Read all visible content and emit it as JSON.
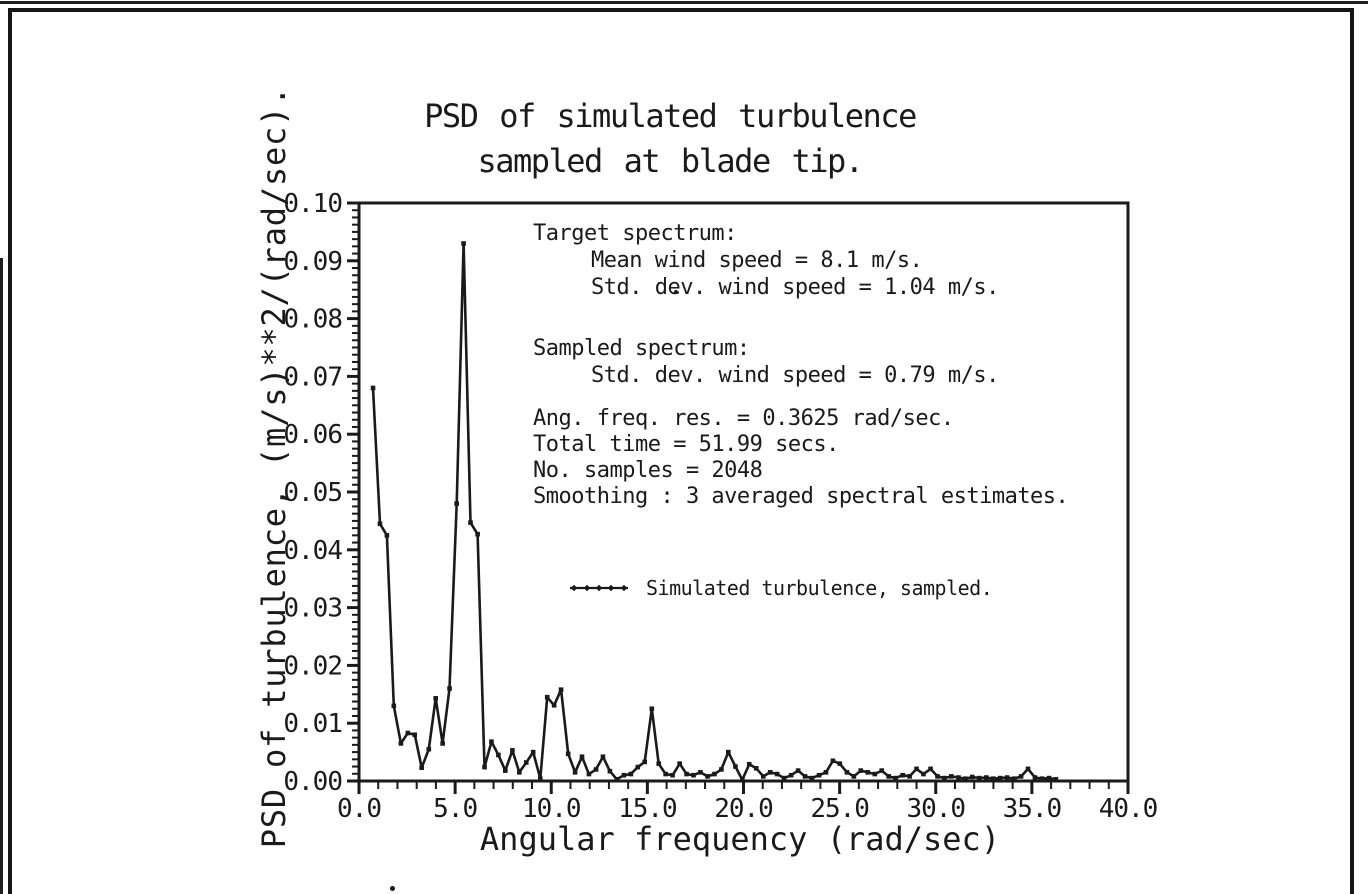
{
  "page": {
    "background": "#ffffff",
    "ink_color": "#1a1a1a"
  },
  "figure": {
    "title_line1": "PSD of simulated turbulence",
    "title_line2": "sampled at blade tip."
  },
  "annotations": {
    "target_header": "Target spectrum:",
    "target_mean": "Mean wind speed = 8.1 m/s.",
    "target_std": "Std. dev. wind speed = 1.04 m/s.",
    "sampled_header": "Sampled spectrum:",
    "sampled_std": "Std. dev. wind speed = 0.79 m/s.",
    "freq_res": "Ang. freq. res. = 0.3625 rad/sec.",
    "total_time": "Total time = 51.99 secs.",
    "num_samples": "No. samples = 2048",
    "smoothing": "Smoothing : 3 averaged spectral estimates."
  },
  "chart_data": {
    "type": "line",
    "title": "PSD of simulated turbulence sampled at blade tip.",
    "xlabel": "Angular frequency (rad/sec)",
    "ylabel": "PSD of turbulence, (m/s)**2/(rad/sec).",
    "xlim": [
      0.0,
      40.0
    ],
    "ylim": [
      0.0,
      0.1
    ],
    "xtick_labels": [
      "0.0",
      "5.0",
      "10.0",
      "15.0",
      "20.0",
      "25.0",
      "30.0",
      "35.0",
      "40.0"
    ],
    "ytick_labels": [
      "0.00",
      "0.01",
      "0.02",
      "0.03",
      "0.04",
      "0.05",
      "0.06",
      "0.07",
      "0.08",
      "0.09",
      "0.10"
    ],
    "x_minor_step": 1.0,
    "y_minor_divisions": 8,
    "grid": false,
    "legend": {
      "position": "inside-center",
      "entries": [
        "Simulated turbulence, sampled."
      ]
    },
    "series": [
      {
        "name": "Simulated turbulence, sampled.",
        "marker": "filled-square",
        "x": [
          0.73,
          1.09,
          1.45,
          1.81,
          2.18,
          2.54,
          2.9,
          3.26,
          3.63,
          3.99,
          4.35,
          4.71,
          5.08,
          5.44,
          5.8,
          6.17,
          6.53,
          6.89,
          7.25,
          7.61,
          7.98,
          8.34,
          8.7,
          9.06,
          9.43,
          9.79,
          10.15,
          10.51,
          10.88,
          11.24,
          11.6,
          11.96,
          12.33,
          12.69,
          13.05,
          13.41,
          13.78,
          14.14,
          14.5,
          14.86,
          15.23,
          15.59,
          15.95,
          16.31,
          16.68,
          17.04,
          17.4,
          17.76,
          18.13,
          18.49,
          18.85,
          19.21,
          19.58,
          19.94,
          20.3,
          20.66,
          21.03,
          21.39,
          21.75,
          22.11,
          22.48,
          22.84,
          23.2,
          23.56,
          23.93,
          24.29,
          24.65,
          25.01,
          25.38,
          25.74,
          26.1,
          26.46,
          26.83,
          27.19,
          27.55,
          27.91,
          28.28,
          28.64,
          29.0,
          29.36,
          29.73,
          30.09,
          30.45,
          30.81,
          31.18,
          31.54,
          31.9,
          32.26,
          32.63,
          32.99,
          33.35,
          33.71,
          34.08,
          34.44,
          34.8,
          35.16,
          35.53,
          35.89,
          36.25
        ],
        "y": [
          0.068,
          0.0445,
          0.0425,
          0.013,
          0.0065,
          0.0083,
          0.008,
          0.0023,
          0.0055,
          0.0143,
          0.0065,
          0.016,
          0.048,
          0.093,
          0.0447,
          0.0427,
          0.0024,
          0.0068,
          0.0045,
          0.0018,
          0.0053,
          0.0015,
          0.0032,
          0.005,
          0.0004,
          0.0145,
          0.0131,
          0.0158,
          0.0047,
          0.0015,
          0.0042,
          0.0012,
          0.002,
          0.0042,
          0.0017,
          0.0003,
          0.001,
          0.0012,
          0.0024,
          0.0033,
          0.0125,
          0.003,
          0.0012,
          0.001,
          0.003,
          0.0012,
          0.001,
          0.0015,
          0.0008,
          0.0012,
          0.002,
          0.005,
          0.0025,
          0.0002,
          0.0029,
          0.0022,
          0.0008,
          0.0015,
          0.0012,
          0.0005,
          0.001,
          0.0018,
          0.0008,
          0.0005,
          0.001,
          0.0015,
          0.0035,
          0.003,
          0.0015,
          0.0008,
          0.0018,
          0.0015,
          0.0012,
          0.0018,
          0.0008,
          0.0005,
          0.001,
          0.0008,
          0.0021,
          0.0012,
          0.0021,
          0.0008,
          0.0005,
          0.0008,
          0.0006,
          0.0004,
          0.0007,
          0.0005,
          0.0006,
          0.0004,
          0.0005,
          0.0006,
          0.0004,
          0.0008,
          0.0021,
          0.0006,
          0.0004,
          0.0005,
          0.0003
        ]
      }
    ]
  }
}
